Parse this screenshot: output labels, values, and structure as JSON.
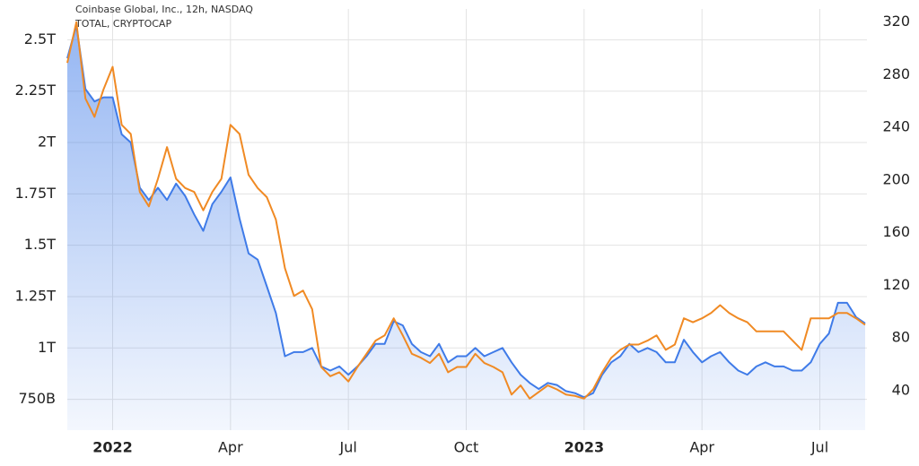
{
  "chart_data": {
    "type": "line",
    "categories": [
      "",
      null,
      null,
      null,
      null,
      "2022",
      null,
      null,
      null,
      null,
      null,
      null,
      null,
      null,
      null,
      null,
      null,
      null,
      "Apr",
      null,
      null,
      null,
      null,
      null,
      null,
      null,
      null,
      null,
      null,
      null,
      null,
      "Jul",
      null,
      null,
      null,
      null,
      null,
      null,
      null,
      null,
      null,
      null,
      null,
      null,
      "Oct",
      null,
      null,
      null,
      null,
      null,
      null,
      null,
      null,
      null,
      null,
      null,
      null,
      "2023",
      null,
      null,
      null,
      null,
      null,
      null,
      null,
      null,
      null,
      null,
      null,
      null,
      "Apr",
      null,
      null,
      null,
      null,
      null,
      null,
      null,
      null,
      null,
      null,
      null,
      null,
      "Jul",
      null,
      null,
      null,
      null,
      null
    ],
    "series": [
      {
        "name": "TOTAL, CRYPTOCAP",
        "color": "#3f7be8",
        "area": true,
        "values": [
          2.41,
          2.57,
          2.26,
          2.2,
          2.22,
          2.22,
          2.04,
          2.0,
          1.78,
          1.72,
          1.78,
          1.72,
          1.8,
          1.74,
          1.65,
          1.57,
          1.7,
          1.76,
          1.83,
          1.63,
          1.46,
          1.43,
          1.3,
          1.17,
          0.96,
          0.98,
          0.98,
          1.0,
          0.91,
          0.89,
          0.91,
          0.87,
          0.91,
          0.96,
          1.02,
          1.02,
          1.13,
          1.11,
          1.02,
          0.98,
          0.96,
          1.02,
          0.93,
          0.96,
          0.96,
          1.0,
          0.96,
          0.98,
          1.0,
          0.93,
          0.87,
          0.83,
          0.8,
          0.83,
          0.82,
          0.79,
          0.78,
          0.76,
          0.78,
          0.87,
          0.93,
          0.96,
          1.02,
          0.98,
          1.0,
          0.98,
          0.93,
          0.93,
          1.04,
          0.98,
          0.93,
          0.96,
          0.98,
          0.93,
          0.89,
          0.87,
          0.91,
          0.93,
          0.91,
          0.91,
          0.89,
          0.89,
          0.93,
          1.02,
          1.07,
          1.22,
          1.22,
          1.15,
          1.12
        ]
      },
      {
        "name": "Coinbase Global, Inc., 12h, NASDAQ",
        "color": "#f08a24",
        "axis": "y2",
        "values": [
          289,
          320,
          262,
          248,
          269,
          286,
          242,
          235,
          191,
          180,
          201,
          225,
          201,
          194,
          191,
          177,
          191,
          201,
          242,
          235,
          204,
          194,
          187,
          170,
          133,
          112,
          116,
          102,
          58,
          51,
          54,
          47,
          58,
          68,
          78,
          82,
          95,
          82,
          68,
          65,
          61,
          68,
          54,
          58,
          58,
          68,
          61,
          58,
          54,
          37,
          44,
          34,
          39,
          44,
          41,
          37,
          36,
          34,
          41,
          54,
          65,
          71,
          75,
          75,
          78,
          82,
          71,
          75,
          95,
          92,
          95,
          99,
          105,
          99,
          95,
          92,
          85,
          85,
          85,
          85,
          78,
          71,
          95,
          95,
          95,
          99,
          99,
          95,
          90
        ]
      }
    ],
    "ylim": [
      0.6,
      2.65
    ],
    "yticks": [
      {
        "value": 0.75,
        "label": "750B"
      },
      {
        "value": 1,
        "label": "1T"
      },
      {
        "value": 1.25,
        "label": "1.25T"
      },
      {
        "value": 1.5,
        "label": "1.5T"
      },
      {
        "value": 1.75,
        "label": "1.75T"
      },
      {
        "value": 2,
        "label": "2T"
      },
      {
        "value": 2.25,
        "label": "2.25T"
      },
      {
        "value": 2.5,
        "label": "2.5T"
      }
    ],
    "y2lim": [
      10,
      330
    ],
    "y2ticks": [
      40,
      80,
      120,
      160,
      200,
      240,
      280,
      320
    ],
    "grid": true
  }
}
